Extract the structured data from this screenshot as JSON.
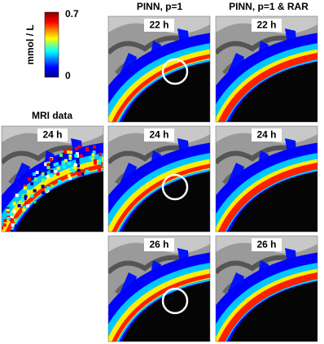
{
  "colorbar": {
    "label": "mmol / L",
    "max": 0.7,
    "min": 0
  },
  "columns": [
    "PINN, p=1",
    "PINN, p=1 & RAR"
  ],
  "mri": {
    "title": "MRI data",
    "time": "24 h"
  },
  "rows": [
    {
      "pinn_time": "22 h",
      "rar_time": "22 h"
    },
    {
      "pinn_time": "24 h",
      "rar_time": "24 h"
    },
    {
      "pinn_time": "26 h",
      "rar_time": "26 h"
    }
  ]
}
